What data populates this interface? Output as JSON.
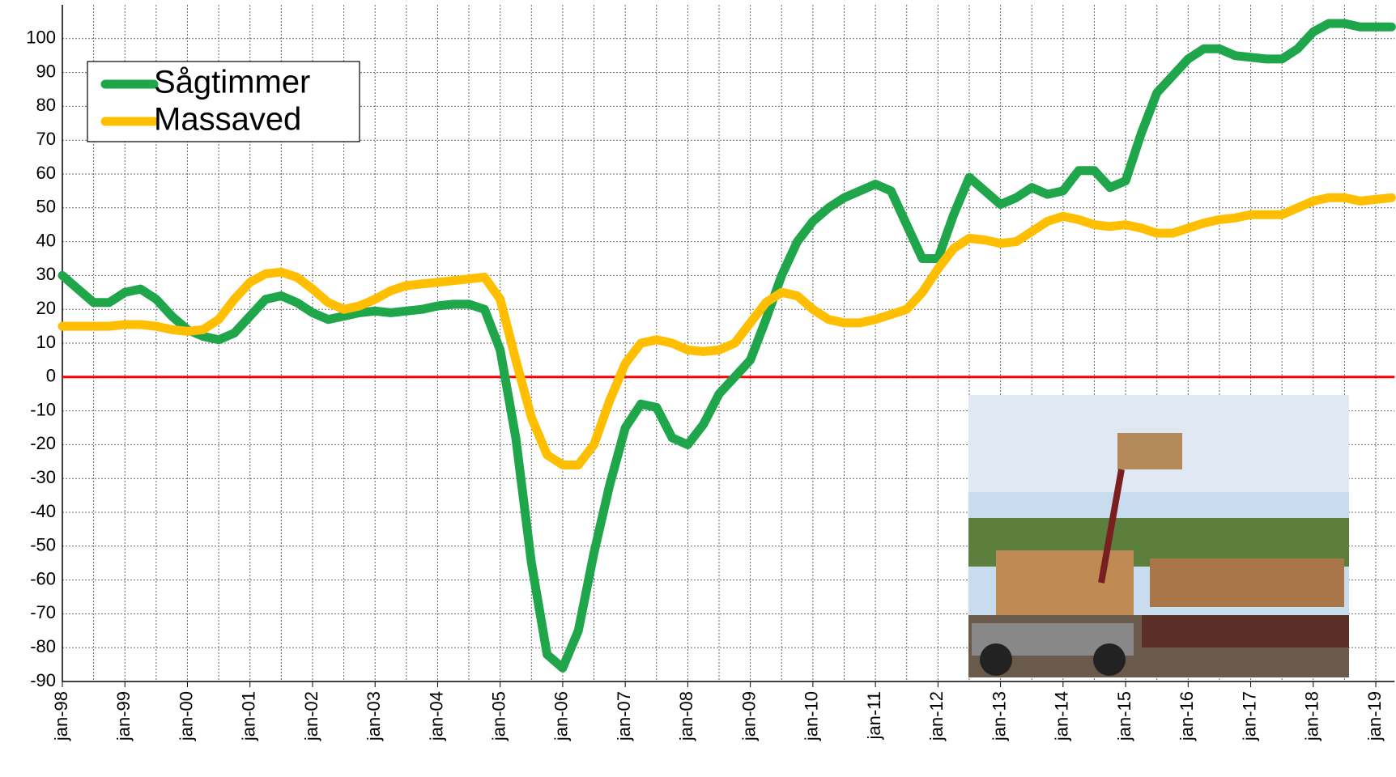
{
  "chart_data": {
    "type": "line",
    "x": [
      1998,
      1998.25,
      1998.5,
      1998.75,
      1999,
      1999.25,
      1999.5,
      1999.75,
      2000,
      2000.25,
      2000.5,
      2000.75,
      2001,
      2001.25,
      2001.5,
      2001.75,
      2002,
      2002.25,
      2002.5,
      2002.75,
      2003,
      2003.25,
      2003.5,
      2003.75,
      2004,
      2004.25,
      2004.5,
      2004.75,
      2005,
      2005.25,
      2005.5,
      2005.75,
      2006,
      2006.25,
      2006.5,
      2006.75,
      2007,
      2007.25,
      2007.5,
      2007.75,
      2008,
      2008.25,
      2008.5,
      2008.75,
      2009,
      2009.25,
      2009.5,
      2009.75,
      2010,
      2010.25,
      2010.5,
      2010.75,
      2011,
      2011.25,
      2011.5,
      2011.75,
      2012,
      2012.25,
      2012.5,
      2012.75,
      2013,
      2013.25,
      2013.5,
      2013.75,
      2014,
      2014.25,
      2014.5,
      2014.75,
      2015,
      2015.25,
      2015.5,
      2015.75,
      2016,
      2016.25,
      2016.5,
      2016.75,
      2017,
      2017.25,
      2017.5,
      2017.75,
      2018,
      2018.25,
      2018.5,
      2018.75,
      2019,
      2019.25
    ],
    "series": [
      {
        "name": "Sågtimmer",
        "color": "#1fa64a",
        "values": [
          30,
          26,
          22,
          22,
          25,
          26,
          23,
          18,
          14,
          12,
          11,
          13,
          18,
          23,
          24,
          22,
          19,
          17,
          18,
          19,
          19.5,
          19,
          19.5,
          20,
          21,
          21.5,
          21.5,
          20,
          8,
          -18,
          -55,
          -82,
          -86,
          -75,
          -52,
          -32,
          -15,
          -8,
          -9,
          -18,
          -20,
          -14,
          -5,
          0,
          5,
          17,
          30,
          40,
          46,
          50,
          53,
          55,
          57,
          55,
          45,
          35,
          35,
          48,
          59,
          55,
          51,
          53,
          56,
          54,
          55,
          61,
          61,
          56,
          58,
          72,
          84,
          89,
          94,
          97,
          97,
          95,
          94.5,
          94,
          94,
          97,
          102,
          104.5,
          104.5,
          103.5,
          103.5,
          103.5
        ]
      },
      {
        "name": "Massaved",
        "color": "#ffbf00",
        "values": [
          15,
          15,
          15,
          15,
          15.5,
          15.5,
          15,
          14,
          13.5,
          14,
          17,
          23,
          28,
          30.5,
          31,
          29.5,
          26,
          22,
          20,
          21,
          23,
          25.5,
          27,
          27.5,
          28,
          28.5,
          29,
          29.5,
          23,
          5,
          -12,
          -23,
          -26,
          -26,
          -20,
          -7,
          4,
          10,
          11,
          10,
          8,
          7.5,
          8,
          10,
          16,
          22,
          25,
          24,
          20,
          17,
          16,
          16,
          17,
          18.5,
          20,
          25,
          32,
          38,
          41,
          40.5,
          39.5,
          40,
          43,
          46,
          47.5,
          46.5,
          45,
          44.5,
          45,
          44,
          42.5,
          42.5,
          44,
          45.5,
          46.5,
          47,
          48,
          48,
          48,
          50,
          52,
          53,
          53,
          52,
          52.5,
          53
        ]
      }
    ],
    "xlim": [
      1998,
      2019.3
    ],
    "xticks": [
      {
        "value": 1998,
        "label": "jan-98"
      },
      {
        "value": 1999,
        "label": "jan-99"
      },
      {
        "value": 2000,
        "label": "jan-00"
      },
      {
        "value": 2001,
        "label": "jan-01"
      },
      {
        "value": 2002,
        "label": "jan-02"
      },
      {
        "value": 2003,
        "label": "jan-03"
      },
      {
        "value": 2004,
        "label": "jan-04"
      },
      {
        "value": 2005,
        "label": "jan-05"
      },
      {
        "value": 2006,
        "label": "jan-06"
      },
      {
        "value": 2007,
        "label": "jan-07"
      },
      {
        "value": 2008,
        "label": "jan-08"
      },
      {
        "value": 2009,
        "label": "jan-09"
      },
      {
        "value": 2010,
        "label": "jan-10"
      },
      {
        "value": 2011,
        "label": "jan-11"
      },
      {
        "value": 2012,
        "label": "jan-12"
      },
      {
        "value": 2013,
        "label": "jan-13"
      },
      {
        "value": 2014,
        "label": "jan-14"
      },
      {
        "value": 2015,
        "label": "jan-15"
      },
      {
        "value": 2016,
        "label": "jan-16"
      },
      {
        "value": 2017,
        "label": "jan-17"
      },
      {
        "value": 2018,
        "label": "jan-18"
      },
      {
        "value": 2019,
        "label": "jan-19"
      }
    ],
    "xminorticks": [
      1998.5,
      1999.5,
      2000.5,
      2001.5,
      2002.5,
      2003.5,
      2004.5,
      2005.5,
      2006.5,
      2007.5,
      2008.5,
      2009.5,
      2010.5,
      2011.5,
      2012.5,
      2013.5,
      2014.5,
      2015.5,
      2016.5,
      2017.5,
      2018.5
    ],
    "ylim": [
      -90,
      110
    ],
    "yticks": [
      -90,
      -80,
      -70,
      -60,
      -50,
      -40,
      -30,
      -20,
      -10,
      0,
      10,
      20,
      30,
      40,
      50,
      60,
      70,
      80,
      90,
      100
    ],
    "reference_line": {
      "value": 0,
      "color": "#ff0000"
    },
    "grid": true,
    "legend": "upper left"
  }
}
